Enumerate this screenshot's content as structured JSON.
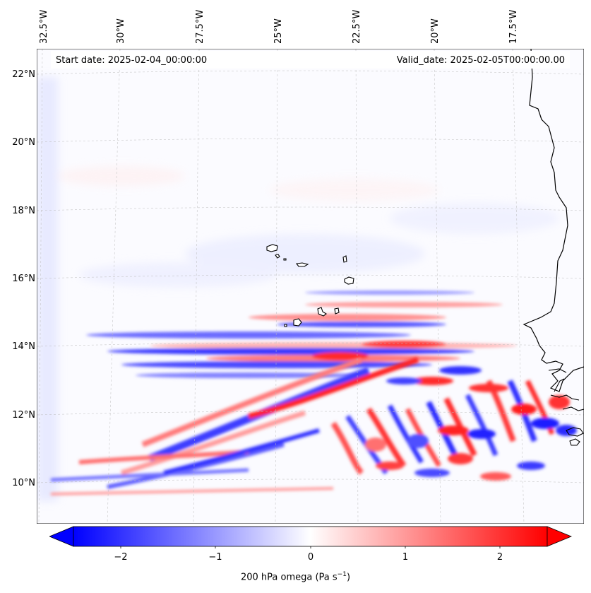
{
  "header": {
    "start_date": "Start date: 2025-02-04_00:00:00",
    "valid_date": "Valid_date: 2025-02-05T00:00:00.00"
  },
  "map": {
    "lon_labels": [
      "32.5°W",
      "30°W",
      "27.5°W",
      "25°W",
      "22.5°W",
      "20°W",
      "17.5°W"
    ],
    "lat_labels": [
      "22°N",
      "20°N",
      "18°N",
      "16°N",
      "14°N",
      "12°N",
      "10°N"
    ],
    "field": "200 hPa omega",
    "features": [
      "african-coastline",
      "cape-verde-islands"
    ]
  },
  "colorbar": {
    "label_main": "200 hPa omega (Pa s",
    "label_exp": "−1",
    "label_close": ")",
    "ticks": [
      "−2",
      "−1",
      "0",
      "1",
      "2"
    ],
    "range": [
      -2.75,
      2.75
    ],
    "colors": {
      "min": "#0000ff",
      "mid": "#ffffff",
      "max": "#ff0000"
    },
    "extend": "both"
  }
}
